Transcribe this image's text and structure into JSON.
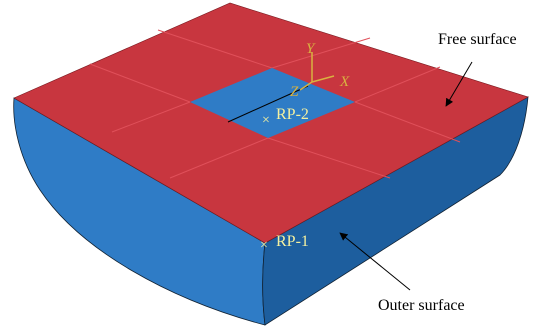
{
  "labels": {
    "free_surface": "Free surface",
    "outer_surface": "Outer surface",
    "rp1": "RP-1",
    "rp2": "RP-2",
    "axis_x": "X",
    "axis_y": "Y",
    "axis_z": "Z"
  }
}
